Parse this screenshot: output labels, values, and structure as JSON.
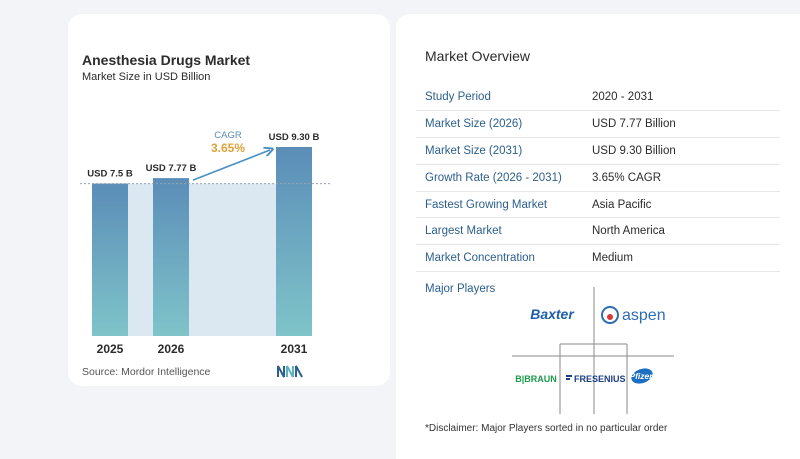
{
  "chart_data": {
    "type": "bar",
    "title": "Anesthesia Drugs Market",
    "subtitle": "Market Size in USD Billion",
    "categories": [
      "2025",
      "2026",
      "2031"
    ],
    "values": [
      7.5,
      7.77,
      9.3
    ],
    "value_labels": [
      "USD 7.5 B",
      "USD 7.77 B",
      "USD 9.30 B"
    ],
    "cagr_label": "CAGR",
    "cagr_value": "3.65%",
    "source": "Source:  Mordor Intelligence",
    "bar_color_top": "#5b8db8",
    "bar_color_bottom": "#7fc4c9",
    "band_color": "#dbe8f2",
    "arrow_color": "#4a90c2",
    "grid": false
  },
  "overview": {
    "title": "Market Overview",
    "rows": [
      {
        "label": "Study Period",
        "value": "2020 - 2031"
      },
      {
        "label": "Market Size (2026)",
        "value": "USD 7.77 Billion"
      },
      {
        "label": "Market Size (2031)",
        "value": "USD 9.30 Billion"
      },
      {
        "label": "Growth Rate (2026 - 2031)",
        "value": "3.65% CAGR"
      },
      {
        "label": "Fastest Growing Market",
        "value": "Asia Pacific"
      },
      {
        "label": "Largest Market",
        "value": "North America"
      },
      {
        "label": "Market Concentration",
        "value": "Medium"
      }
    ],
    "players_title": "Major Players",
    "players": [
      "Baxter",
      "aspen",
      "B|BRAUN",
      "FRESENIUS",
      "Pfizer"
    ],
    "disclaimer": "*Disclaimer: Major Players sorted in no particular order"
  }
}
